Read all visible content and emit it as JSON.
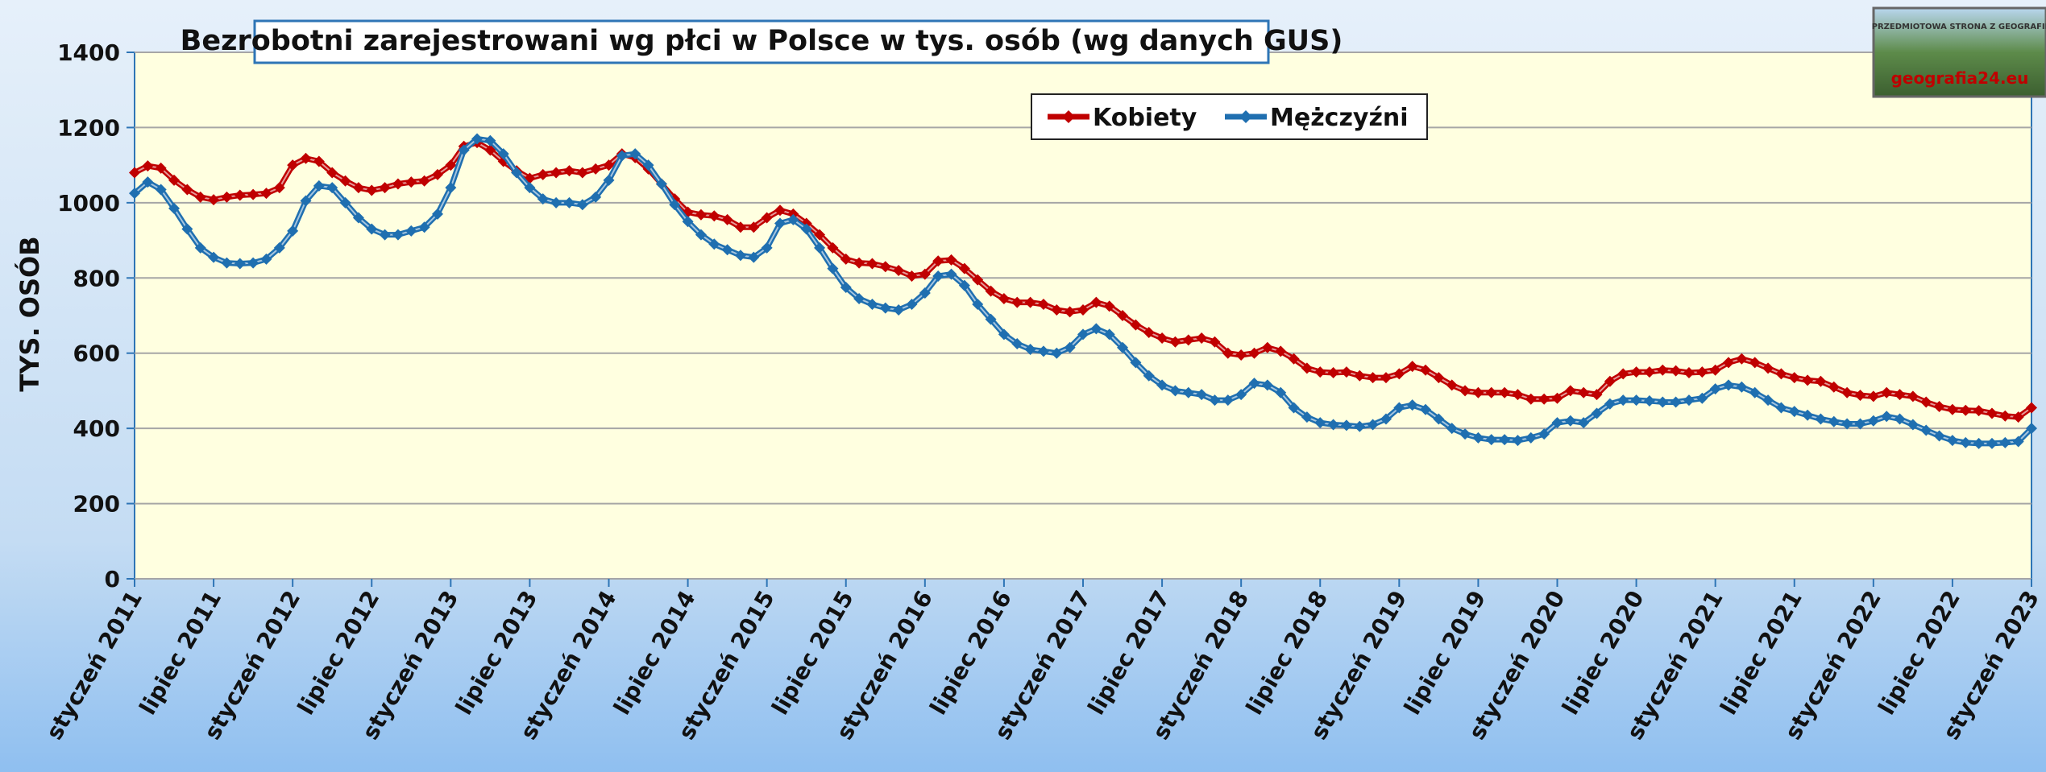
{
  "chart_data": {
    "type": "line",
    "title": "Bezrobotni zarejestrowani wg płci w Polsce w tys. osób (wg danych GUS)",
    "y_label": "TYS. OSÓB",
    "logo_top": "PRZEDMIOTOWA STRONA Z GEOGRAFII",
    "logo_text": "geografia24.eu",
    "categories": [
      "styczeń 2011",
      null,
      null,
      null,
      null,
      null,
      "lipiec 2011",
      null,
      null,
      null,
      null,
      null,
      "styczeń 2012",
      null,
      null,
      null,
      null,
      null,
      "lipiec 2012",
      null,
      null,
      null,
      null,
      null,
      "styczeń 2013",
      null,
      null,
      null,
      null,
      null,
      "lipiec 2013",
      null,
      null,
      null,
      null,
      null,
      "styczeń 2014",
      null,
      null,
      null,
      null,
      null,
      "lipiec 2014",
      null,
      null,
      null,
      null,
      null,
      "styczeń 2015",
      null,
      null,
      null,
      null,
      null,
      "lipiec 2015",
      null,
      null,
      null,
      null,
      null,
      "styczeń 2016",
      null,
      null,
      null,
      null,
      null,
      "lipiec 2016",
      null,
      null,
      null,
      null,
      null,
      "styczeń 2017",
      null,
      null,
      null,
      null,
      null,
      "lipiec 2017",
      null,
      null,
      null,
      null,
      null,
      "styczeń 2018",
      null,
      null,
      null,
      null,
      null,
      "lipiec 2018",
      null,
      null,
      null,
      null,
      null,
      "styczeń 2019",
      null,
      null,
      null,
      null,
      null,
      "lipiec 2019",
      null,
      null,
      null,
      null,
      null,
      "styczeń 2020",
      null,
      null,
      null,
      null,
      null,
      "lipiec 2020",
      null,
      null,
      null,
      null,
      null,
      "styczeń 2021",
      null,
      null,
      null,
      null,
      null,
      "lipiec 2021",
      null,
      null,
      null,
      null,
      null,
      "styczeń 2022",
      null,
      null,
      null,
      null,
      null,
      "lipiec 2022",
      null,
      null,
      null,
      null,
      null,
      "styczeń 2023"
    ],
    "series": [
      {
        "name": "Kobiety",
        "color": "#c00000",
        "values": [
          1080,
          1098,
          1092,
          1060,
          1035,
          1015,
          1008,
          1015,
          1020,
          1022,
          1025,
          1040,
          1100,
          1118,
          1110,
          1080,
          1058,
          1040,
          1033,
          1040,
          1050,
          1055,
          1058,
          1075,
          1100,
          1150,
          1160,
          1140,
          1110,
          1085,
          1065,
          1075,
          1080,
          1085,
          1080,
          1090,
          1100,
          1130,
          1120,
          1090,
          1050,
          1010,
          975,
          968,
          965,
          955,
          935,
          935,
          960,
          980,
          970,
          945,
          915,
          880,
          850,
          840,
          838,
          830,
          820,
          805,
          810,
          845,
          848,
          825,
          795,
          765,
          745,
          735,
          735,
          730,
          715,
          710,
          715,
          735,
          725,
          700,
          675,
          655,
          640,
          630,
          635,
          640,
          630,
          600,
          595,
          600,
          615,
          605,
          585,
          560,
          550,
          548,
          550,
          540,
          535,
          535,
          545,
          565,
          555,
          535,
          515,
          500,
          495,
          495,
          495,
          490,
          478,
          478,
          480,
          500,
          495,
          490,
          525,
          545,
          550,
          550,
          555,
          553,
          548,
          550,
          555,
          575,
          585,
          575,
          560,
          545,
          535,
          528,
          525,
          510,
          495,
          488,
          485,
          495,
          490,
          485,
          470,
          458,
          450,
          448,
          447,
          440,
          433,
          430,
          455
        ]
      },
      {
        "name": "Mężczyźni",
        "color": "#1f6fb0",
        "values": [
          1025,
          1055,
          1035,
          985,
          930,
          880,
          855,
          840,
          838,
          840,
          850,
          880,
          925,
          1005,
          1045,
          1040,
          1000,
          960,
          930,
          915,
          915,
          925,
          935,
          970,
          1040,
          1140,
          1170,
          1165,
          1130,
          1080,
          1040,
          1010,
          1000,
          1000,
          995,
          1015,
          1060,
          1125,
          1130,
          1100,
          1050,
          995,
          950,
          915,
          890,
          875,
          860,
          855,
          880,
          945,
          955,
          930,
          880,
          825,
          775,
          745,
          730,
          720,
          715,
          730,
          760,
          805,
          810,
          780,
          730,
          690,
          650,
          625,
          610,
          605,
          600,
          615,
          650,
          665,
          650,
          615,
          575,
          540,
          515,
          500,
          495,
          490,
          475,
          475,
          490,
          520,
          515,
          495,
          455,
          430,
          415,
          410,
          408,
          405,
          410,
          425,
          455,
          462,
          450,
          425,
          400,
          385,
          375,
          370,
          370,
          368,
          375,
          385,
          415,
          420,
          415,
          440,
          465,
          475,
          475,
          473,
          470,
          470,
          475,
          480,
          505,
          515,
          510,
          495,
          475,
          455,
          445,
          435,
          425,
          418,
          412,
          412,
          420,
          432,
          425,
          410,
          395,
          380,
          368,
          362,
          360,
          360,
          362,
          365,
          400
        ]
      }
    ],
    "ylim": [
      0,
      1400
    ],
    "yticks": [
      0,
      200,
      400,
      600,
      800,
      1000,
      1200,
      1400
    ],
    "grid": true
  }
}
